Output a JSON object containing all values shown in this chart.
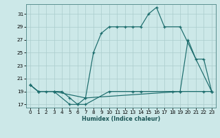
{
  "xlabel": "Humidex (Indice chaleur)",
  "background_color": "#cce8e8",
  "grid_color": "#aacccc",
  "line_color": "#1a6b6b",
  "xlim": [
    -0.5,
    23.5
  ],
  "ylim": [
    16.5,
    32.5
  ],
  "xticks": [
    0,
    1,
    2,
    3,
    4,
    5,
    6,
    7,
    8,
    9,
    10,
    11,
    12,
    13,
    14,
    15,
    16,
    17,
    18,
    19,
    20,
    21,
    22,
    23
  ],
  "yticks": [
    17,
    19,
    21,
    23,
    25,
    27,
    29,
    31
  ],
  "series": [
    {
      "x": [
        0,
        1,
        3,
        5,
        6,
        7,
        8,
        9,
        10,
        11,
        12,
        13,
        14,
        15,
        16,
        17,
        19,
        23
      ],
      "y": [
        20,
        19,
        19,
        17,
        17,
        18,
        25,
        28,
        29,
        29,
        29,
        29,
        29,
        31,
        32,
        29,
        29,
        19
      ]
    },
    {
      "x": [
        0,
        1,
        3,
        7,
        19,
        20,
        21,
        22,
        23
      ],
      "y": [
        20,
        19,
        19,
        18,
        19,
        27,
        24,
        24,
        19
      ]
    },
    {
      "x": [
        0,
        1,
        2,
        3,
        4,
        5,
        6,
        7,
        10,
        13,
        14,
        18,
        19,
        22,
        23
      ],
      "y": [
        20,
        19,
        19,
        19,
        19,
        18,
        17,
        17,
        19,
        19,
        19,
        19,
        19,
        19,
        19
      ]
    }
  ]
}
